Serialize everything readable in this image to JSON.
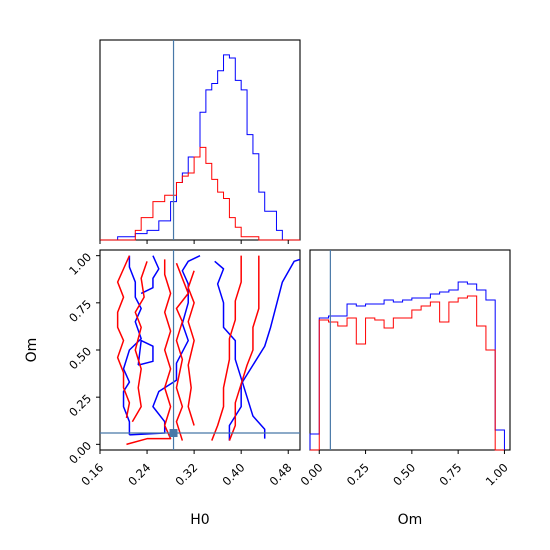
{
  "chart_data": {
    "type": "corner",
    "parameters": [
      "H0",
      "Om"
    ],
    "truths": {
      "H0": 0.285,
      "Om": 0.06
    },
    "colors": {
      "series_a": "#0000ff",
      "series_b": "#ff0000",
      "truth": "#4878a8"
    },
    "panels": [
      {
        "id": "hist-H0",
        "type": "histogram",
        "x": "H0",
        "xlim": [
          0.16,
          0.5
        ],
        "bin_edges": [
          0.16,
          0.17,
          0.18,
          0.19,
          0.2,
          0.21,
          0.22,
          0.23,
          0.24,
          0.25,
          0.26,
          0.27,
          0.28,
          0.29,
          0.3,
          0.31,
          0.32,
          0.33,
          0.34,
          0.35,
          0.36,
          0.37,
          0.38,
          0.39,
          0.4,
          0.41,
          0.42,
          0.43,
          0.44,
          0.45,
          0.46,
          0.47,
          0.48,
          0.49,
          0.5
        ],
        "series": [
          {
            "color": "blue",
            "counts": [
              0,
              0,
              0,
              1,
              1,
              1,
              2,
              2,
              3,
              3,
              6,
              6,
              12,
              18,
              21,
              26,
              26,
              40,
              47,
              49,
              53,
              58,
              57,
              50,
              47,
              33,
              27,
              15,
              9,
              9,
              3,
              0,
              0,
              0
            ]
          },
          {
            "color": "red",
            "counts": [
              0,
              0,
              0,
              0,
              0,
              0,
              3,
              7,
              7,
              12,
              12,
              14,
              14,
              18,
              20,
              21,
              26,
              29,
              24,
              19,
              15,
              13,
              7,
              4,
              1,
              1,
              1,
              0,
              0,
              0,
              0,
              0,
              0,
              0
            ]
          }
        ]
      },
      {
        "id": "contour-H0-Om",
        "type": "contour",
        "x": "H0",
        "y": "Om",
        "xlim": [
          0.16,
          0.5
        ],
        "ylim": [
          -0.03,
          1.03
        ],
        "xticks": [
          "0.16",
          "0.24",
          "0.32",
          "0.40",
          "0.48"
        ],
        "yticks": [
          "0.00",
          "0.25",
          "0.50",
          "0.75",
          "1.00"
        ],
        "xlabel": "H0",
        "ylabel": "Om",
        "contours": [
          {
            "color": "blue",
            "points": [
              [
                0.21,
                0.05
              ],
              [
                0.27,
                0.06
              ],
              [
                0.27,
                0.12
              ],
              [
                0.25,
                0.2
              ],
              [
                0.26,
                0.28
              ],
              [
                0.29,
                0.34
              ],
              [
                0.29,
                0.43
              ],
              [
                0.31,
                0.55
              ],
              [
                0.3,
                0.64
              ],
              [
                0.31,
                0.75
              ],
              [
                0.31,
                0.85
              ],
              [
                0.3,
                0.92
              ],
              [
                0.31,
                0.97
              ],
              [
                0.33,
                1.0
              ]
            ]
          },
          {
            "color": "blue",
            "points": [
              [
                0.21,
                0.05
              ],
              [
                0.21,
                0.12
              ],
              [
                0.2,
                0.2
              ],
              [
                0.2,
                0.28
              ],
              [
                0.21,
                0.33
              ],
              [
                0.2,
                0.4
              ],
              [
                0.21,
                0.5
              ],
              [
                0.23,
                0.56
              ],
              [
                0.22,
                0.65
              ],
              [
                0.23,
                0.72
              ],
              [
                0.22,
                0.78
              ],
              [
                0.22,
                0.86
              ],
              [
                0.21,
                0.94
              ],
              [
                0.21,
                1.0
              ]
            ]
          },
          {
            "color": "blue",
            "points": [
              [
                0.23,
                0.8
              ],
              [
                0.25,
                0.83
              ],
              [
                0.25,
                0.88
              ],
              [
                0.26,
                0.93
              ],
              [
                0.25,
                1.0
              ]
            ]
          },
          {
            "color": "blue",
            "points": [
              [
                0.225,
                0.42
              ],
              [
                0.25,
                0.44
              ],
              [
                0.25,
                0.52
              ],
              [
                0.23,
                0.55
              ],
              [
                0.225,
                0.42
              ]
            ]
          },
          {
            "color": "blue",
            "points": [
              [
                0.38,
                0.02
              ],
              [
                0.38,
                0.1
              ],
              [
                0.4,
                0.2
              ],
              [
                0.4,
                0.32
              ],
              [
                0.42,
                0.42
              ],
              [
                0.44,
                0.52
              ],
              [
                0.45,
                0.62
              ],
              [
                0.46,
                0.74
              ],
              [
                0.47,
                0.86
              ],
              [
                0.49,
                0.97
              ],
              [
                0.5,
                0.98
              ]
            ]
          },
          {
            "color": "blue",
            "points": [
              [
                0.355,
                0.97
              ],
              [
                0.37,
                0.93
              ],
              [
                0.36,
                0.85
              ],
              [
                0.37,
                0.75
              ],
              [
                0.37,
                0.62
              ],
              [
                0.39,
                0.55
              ],
              [
                0.39,
                0.45
              ],
              [
                0.4,
                0.35
              ],
              [
                0.41,
                0.25
              ],
              [
                0.42,
                0.15
              ],
              [
                0.44,
                0.08
              ],
              [
                0.44,
                0.03
              ]
            ]
          },
          {
            "color": "red",
            "points": [
              [
                0.205,
                0.14
              ],
              [
                0.21,
                0.22
              ],
              [
                0.2,
                0.3
              ],
              [
                0.2,
                0.38
              ],
              [
                0.19,
                0.46
              ],
              [
                0.2,
                0.55
              ],
              [
                0.19,
                0.62
              ],
              [
                0.19,
                0.7
              ],
              [
                0.2,
                0.78
              ],
              [
                0.19,
                0.86
              ],
              [
                0.2,
                0.93
              ],
              [
                0.21,
                1.0
              ]
            ]
          },
          {
            "color": "red",
            "points": [
              [
                0.215,
                0.12
              ],
              [
                0.23,
                0.2
              ],
              [
                0.225,
                0.3
              ],
              [
                0.23,
                0.4
              ],
              [
                0.22,
                0.5
              ],
              [
                0.23,
                0.62
              ],
              [
                0.22,
                0.7
              ],
              [
                0.235,
                0.78
              ],
              [
                0.23,
                0.88
              ],
              [
                0.24,
                0.97
              ]
            ]
          },
          {
            "color": "red",
            "points": [
              [
                0.205,
                0.0
              ],
              [
                0.24,
                0.03
              ],
              [
                0.28,
                0.03
              ],
              [
                0.27,
                0.1
              ],
              [
                0.28,
                0.2
              ],
              [
                0.27,
                0.3
              ],
              [
                0.28,
                0.4
              ],
              [
                0.27,
                0.5
              ],
              [
                0.28,
                0.6
              ],
              [
                0.27,
                0.7
              ],
              [
                0.28,
                0.8
              ],
              [
                0.27,
                0.9
              ],
              [
                0.27,
                0.98
              ]
            ]
          },
          {
            "color": "red",
            "points": [
              [
                0.3,
                0.02
              ],
              [
                0.29,
                0.12
              ],
              [
                0.3,
                0.2
              ],
              [
                0.29,
                0.3
              ],
              [
                0.3,
                0.45
              ],
              [
                0.29,
                0.55
              ],
              [
                0.3,
                0.65
              ],
              [
                0.29,
                0.72
              ],
              [
                0.31,
                0.8
              ],
              [
                0.3,
                0.88
              ],
              [
                0.29,
                0.96
              ]
            ]
          },
          {
            "color": "red",
            "points": [
              [
                0.32,
                0.1
              ],
              [
                0.31,
                0.2
              ],
              [
                0.315,
                0.3
              ],
              [
                0.31,
                0.42
              ],
              [
                0.32,
                0.55
              ],
              [
                0.31,
                0.65
              ],
              [
                0.32,
                0.75
              ],
              [
                0.31,
                0.83
              ],
              [
                0.32,
                0.92
              ]
            ]
          },
          {
            "color": "red",
            "points": [
              [
                0.35,
                0.02
              ],
              [
                0.36,
                0.1
              ],
              [
                0.37,
                0.2
              ],
              [
                0.37,
                0.3
              ],
              [
                0.38,
                0.45
              ],
              [
                0.38,
                0.56
              ],
              [
                0.39,
                0.66
              ],
              [
                0.39,
                0.76
              ],
              [
                0.4,
                0.86
              ],
              [
                0.4,
                0.96
              ],
              [
                0.4,
                1.0
              ]
            ]
          },
          {
            "color": "red",
            "points": [
              [
                0.38,
                0.02
              ],
              [
                0.39,
                0.1
              ],
              [
                0.39,
                0.22
              ],
              [
                0.4,
                0.32
              ],
              [
                0.41,
                0.42
              ],
              [
                0.42,
                0.5
              ],
              [
                0.42,
                0.62
              ],
              [
                0.43,
                0.72
              ],
              [
                0.43,
                0.84
              ],
              [
                0.43,
                0.96
              ],
              [
                0.43,
                1.0
              ]
            ]
          }
        ]
      },
      {
        "id": "hist-Om",
        "type": "histogram",
        "x": "Om",
        "xlim": [
          -0.05,
          1.03
        ],
        "xticks": [
          "0.00",
          "0.25",
          "0.50",
          "0.75",
          "1.00"
        ],
        "xlabel": "Om",
        "bin_edges": [
          -0.05,
          0.0,
          0.05,
          0.1,
          0.15,
          0.2,
          0.25,
          0.3,
          0.35,
          0.4,
          0.45,
          0.5,
          0.55,
          0.6,
          0.65,
          0.7,
          0.75,
          0.8,
          0.85,
          0.9,
          0.95,
          1.0
        ],
        "series": [
          {
            "color": "blue",
            "counts": [
              0.08,
              0.66,
              0.67,
              0.67,
              0.73,
              0.72,
              0.73,
              0.73,
              0.75,
              0.74,
              0.75,
              0.76,
              0.76,
              0.78,
              0.79,
              0.8,
              0.84,
              0.83,
              0.8,
              0.75,
              0.1
            ]
          },
          {
            "color": "red",
            "counts": [
              0.0,
              0.65,
              0.64,
              0.62,
              0.66,
              0.53,
              0.66,
              0.65,
              0.61,
              0.66,
              0.66,
              0.7,
              0.72,
              0.74,
              0.64,
              0.74,
              0.76,
              0.77,
              0.62,
              0.5,
              0.0
            ]
          }
        ]
      }
    ]
  }
}
